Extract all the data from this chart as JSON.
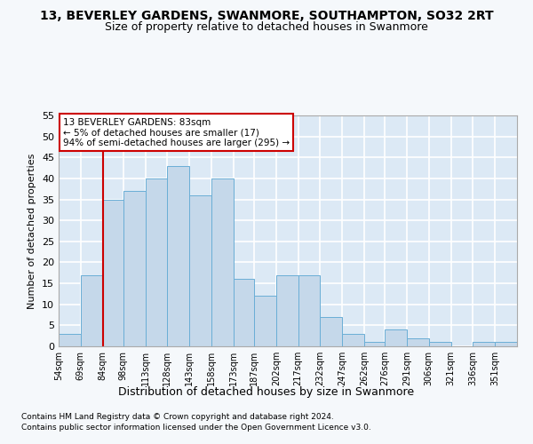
{
  "title1": "13, BEVERLEY GARDENS, SWANMORE, SOUTHAMPTON, SO32 2RT",
  "title2": "Size of property relative to detached houses in Swanmore",
  "xlabel": "Distribution of detached houses by size in Swanmore",
  "ylabel": "Number of detached properties",
  "bin_labels": [
    "54sqm",
    "69sqm",
    "84sqm",
    "98sqm",
    "113sqm",
    "128sqm",
    "143sqm",
    "158sqm",
    "173sqm",
    "187sqm",
    "202sqm",
    "217sqm",
    "232sqm",
    "247sqm",
    "262sqm",
    "276sqm",
    "291sqm",
    "306sqm",
    "321sqm",
    "336sqm",
    "351sqm"
  ],
  "bar_values": [
    3,
    17,
    35,
    37,
    40,
    43,
    36,
    40,
    16,
    12,
    17,
    17,
    7,
    3,
    1,
    4,
    2,
    1,
    0,
    1,
    1
  ],
  "bar_color": "#c5d8ea",
  "bar_edge_color": "#6aaed6",
  "property_line_color": "#cc0000",
  "annotation_text": "13 BEVERLEY GARDENS: 83sqm\n← 5% of detached houses are smaller (17)\n94% of semi-detached houses are larger (295) →",
  "annotation_box_color": "#ffffff",
  "annotation_box_edge_color": "#cc0000",
  "ylim": [
    0,
    55
  ],
  "yticks": [
    0,
    5,
    10,
    15,
    20,
    25,
    30,
    35,
    40,
    45,
    50,
    55
  ],
  "footer1": "Contains HM Land Registry data © Crown copyright and database right 2024.",
  "footer2": "Contains public sector information licensed under the Open Government Licence v3.0.",
  "bg_color": "#dce9f5",
  "grid_color": "#ffffff",
  "title1_fontsize": 10,
  "title2_fontsize": 9,
  "xlabel_fontsize": 9,
  "ylabel_fontsize": 8,
  "bin_edges": [
    54,
    69,
    84,
    98,
    113,
    128,
    143,
    158,
    173,
    187,
    202,
    217,
    232,
    247,
    262,
    276,
    291,
    306,
    321,
    336,
    351,
    366
  ]
}
